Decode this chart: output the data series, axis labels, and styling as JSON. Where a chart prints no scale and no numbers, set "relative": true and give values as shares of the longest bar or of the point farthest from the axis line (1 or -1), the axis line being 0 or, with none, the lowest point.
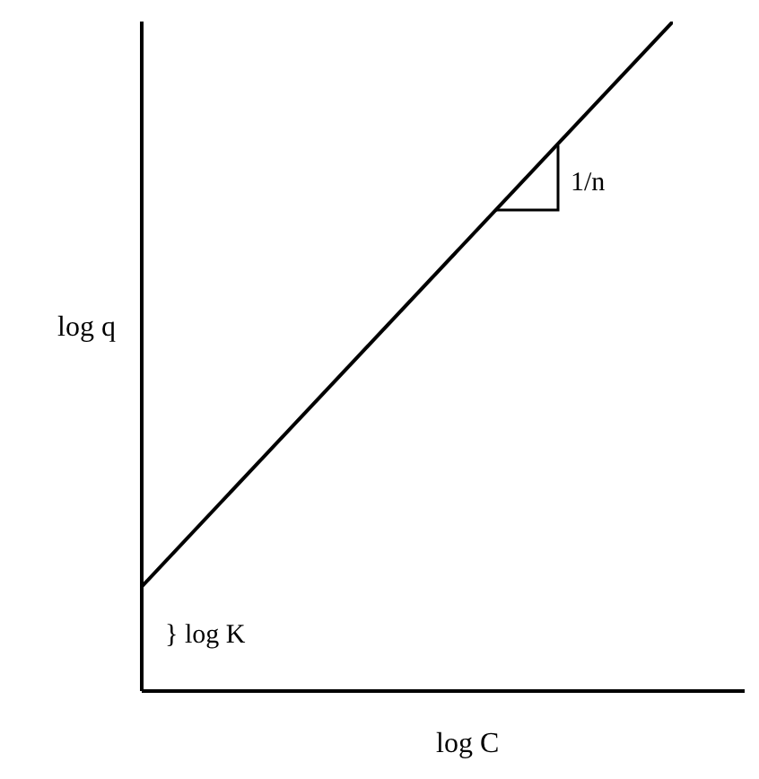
{
  "chart_data": {
    "type": "line",
    "relative": true,
    "categories": [
      null,
      null
    ],
    "xlabel": "log C",
    "ylabel": "log q",
    "series": [
      {
        "color": "#000000",
        "values": [
          0.156,
          1
        ]
      }
    ],
    "annotations": [
      "1/n",
      "} log K"
    ],
    "marker": "none",
    "line_style": "solid",
    "grid": false,
    "legend": false
  }
}
